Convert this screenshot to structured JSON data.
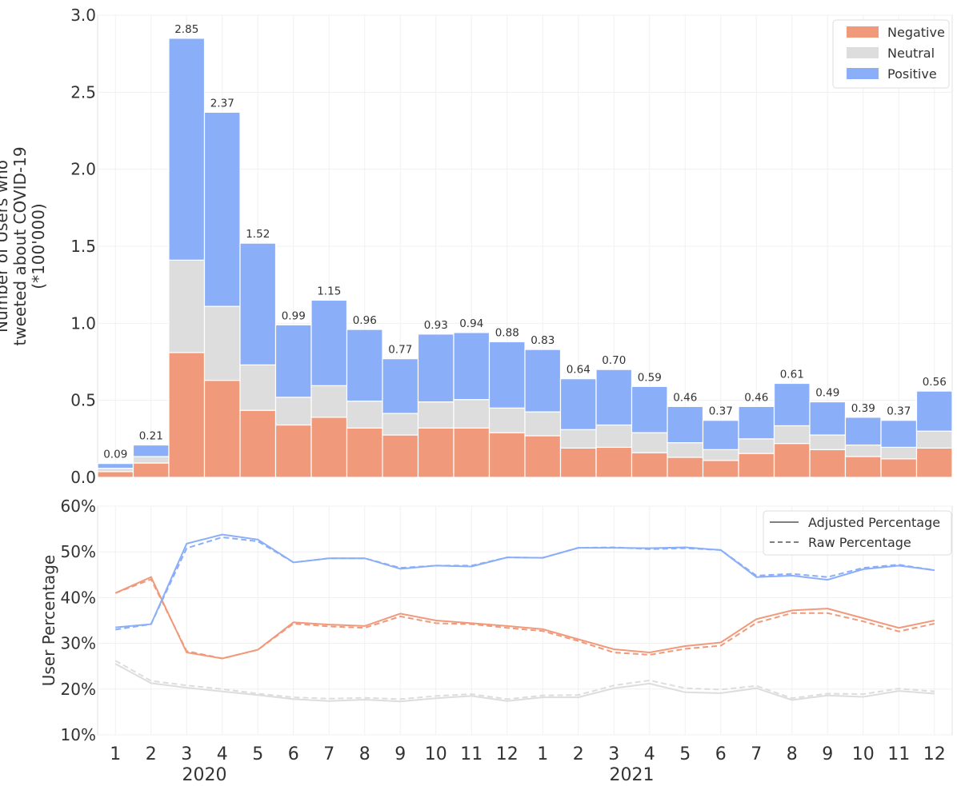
{
  "chart_data": [
    {
      "type": "bar",
      "stacked": true,
      "categories": [
        "1",
        "2",
        "3",
        "4",
        "5",
        "6",
        "7",
        "8",
        "9",
        "10",
        "11",
        "12",
        "1",
        "2",
        "3",
        "4",
        "5",
        "6",
        "7",
        "8",
        "9",
        "10",
        "11",
        "12"
      ],
      "year_labels": [
        "2020",
        "2021"
      ],
      "ylabel_lines": [
        "Number of Users who",
        "tweeted about COVID-19",
        "(*100'000)"
      ],
      "ylim": [
        0,
        3.0
      ],
      "yticks": [
        "0.0",
        "0.5",
        "1.0",
        "1.5",
        "2.0",
        "2.5",
        "3.0"
      ],
      "grid": true,
      "legend_position": "top-right",
      "totals": [
        0.09,
        0.21,
        2.85,
        2.37,
        1.52,
        0.99,
        1.15,
        0.96,
        0.77,
        0.93,
        0.94,
        0.88,
        0.83,
        0.64,
        0.7,
        0.59,
        0.46,
        0.37,
        0.46,
        0.61,
        0.49,
        0.39,
        0.37,
        0.56
      ],
      "total_labels": [
        "0.09",
        "0.21",
        "2.85",
        "2.37",
        "1.52",
        "0.99",
        "1.15",
        "0.96",
        "0.77",
        "0.93",
        "0.94",
        "0.88",
        "0.83",
        "0.64",
        "0.70",
        "0.59",
        "0.46",
        "0.37",
        "0.46",
        "0.61",
        "0.49",
        "0.39",
        "0.37",
        "0.56"
      ],
      "series": [
        {
          "name": "Negative",
          "color": "#f0997b",
          "values": [
            0.037,
            0.093,
            0.81,
            0.63,
            0.435,
            0.34,
            0.39,
            0.32,
            0.275,
            0.32,
            0.32,
            0.29,
            0.27,
            0.19,
            0.195,
            0.16,
            0.13,
            0.11,
            0.155,
            0.22,
            0.18,
            0.135,
            0.12,
            0.19
          ]
        },
        {
          "name": "Neutral",
          "color": "#dddddd",
          "values": [
            0.022,
            0.042,
            0.6,
            0.48,
            0.295,
            0.18,
            0.205,
            0.175,
            0.14,
            0.17,
            0.185,
            0.16,
            0.155,
            0.12,
            0.145,
            0.13,
            0.095,
            0.07,
            0.095,
            0.115,
            0.095,
            0.075,
            0.075,
            0.11
          ]
        },
        {
          "name": "Positive",
          "color": "#8aaef8",
          "values": [
            0.031,
            0.075,
            1.44,
            1.26,
            0.79,
            0.47,
            0.555,
            0.465,
            0.355,
            0.44,
            0.435,
            0.43,
            0.405,
            0.33,
            0.36,
            0.3,
            0.235,
            0.19,
            0.21,
            0.275,
            0.215,
            0.18,
            0.175,
            0.26
          ]
        }
      ]
    },
    {
      "type": "line",
      "x": [
        "1",
        "2",
        "3",
        "4",
        "5",
        "6",
        "7",
        "8",
        "9",
        "10",
        "11",
        "12",
        "1",
        "2",
        "3",
        "4",
        "5",
        "6",
        "7",
        "8",
        "9",
        "10",
        "11",
        "12"
      ],
      "ylabel": "User Percentage",
      "ylim": [
        10,
        60
      ],
      "yticks": [
        "10%",
        "20%",
        "30%",
        "40%",
        "50%",
        "60%"
      ],
      "grid": true,
      "legend_position": "top-right",
      "legend": {
        "solid": "Adjusted Percentage",
        "dashed": "Raw Percentage"
      },
      "series": [
        {
          "name": "Positive",
          "color": "#8aaef8",
          "adjusted": [
            33.5,
            34.2,
            51.8,
            53.8,
            52.7,
            47.7,
            48.6,
            48.6,
            46.3,
            47.0,
            46.8,
            48.8,
            48.7,
            50.9,
            50.9,
            50.8,
            51.0,
            50.4,
            44.5,
            44.8,
            43.9,
            46.2,
            47.0,
            46.0
          ],
          "raw": [
            33.0,
            34.2,
            50.8,
            53.2,
            52.3,
            47.7,
            48.6,
            48.6,
            46.5,
            47.0,
            47.0,
            48.8,
            48.7,
            50.9,
            51.0,
            50.6,
            50.8,
            50.4,
            44.8,
            45.2,
            44.5,
            46.5,
            47.2,
            46.0
          ]
        },
        {
          "name": "Negative",
          "color": "#f0997b",
          "adjusted": [
            41.0,
            44.5,
            28.0,
            26.7,
            28.6,
            34.6,
            34.1,
            33.8,
            36.5,
            35.0,
            34.4,
            33.8,
            33.1,
            30.9,
            28.7,
            28.0,
            29.4,
            30.2,
            35.3,
            37.2,
            37.6,
            35.5,
            33.4,
            35.0
          ],
          "raw": [
            41.0,
            44.0,
            28.3,
            26.7,
            28.6,
            34.3,
            33.7,
            33.4,
            35.9,
            34.4,
            34.2,
            33.4,
            32.7,
            30.5,
            28.0,
            27.5,
            28.8,
            29.5,
            34.5,
            36.6,
            36.6,
            34.8,
            32.6,
            34.3
          ]
        },
        {
          "name": "Neutral",
          "color": "#dddddd",
          "adjusted": [
            25.5,
            21.3,
            20.3,
            19.5,
            18.7,
            17.8,
            17.4,
            17.7,
            17.3,
            18.0,
            18.5,
            17.4,
            18.2,
            18.2,
            20.2,
            21.2,
            19.3,
            19.1,
            20.2,
            17.6,
            18.6,
            18.3,
            19.6,
            19.0
          ],
          "raw": [
            26.2,
            21.8,
            20.8,
            20.0,
            19.0,
            18.2,
            17.9,
            18.1,
            17.8,
            18.5,
            18.9,
            17.8,
            18.6,
            18.7,
            20.8,
            21.9,
            20.2,
            19.9,
            20.7,
            18.0,
            19.0,
            18.9,
            20.1,
            19.5
          ]
        }
      ]
    }
  ]
}
